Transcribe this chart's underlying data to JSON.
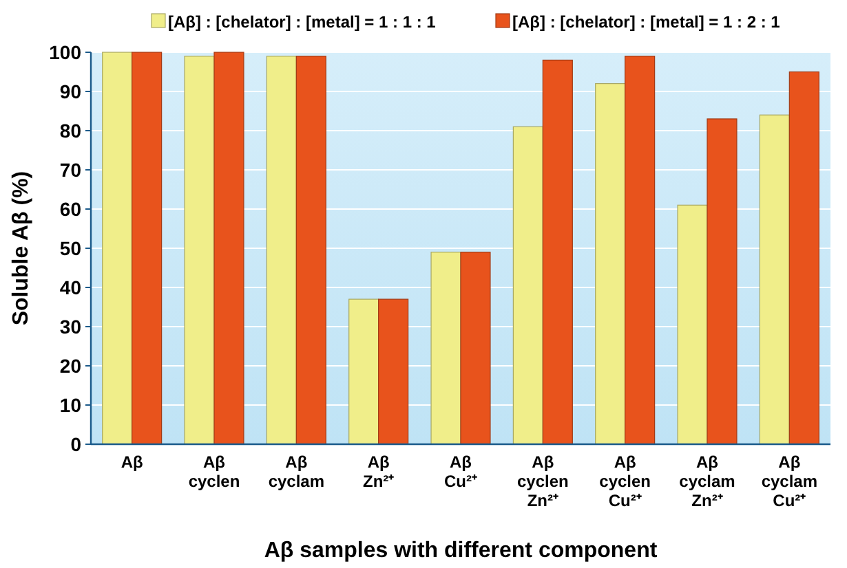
{
  "chart_data": {
    "type": "bar",
    "xlabel": "Aβ samples with different component",
    "ylabel": "Soluble Aβ (%)",
    "categories": [
      "Aβ",
      "Aβ\ncyclen",
      "Aβ\ncyclam",
      "Aβ\nZn²⁺",
      "Aβ\nCu²⁺",
      "Aβ\ncyclen\nZn²⁺",
      "Aβ\ncyclen\nCu²⁺",
      "Aβ\ncyclam\nZn²⁺",
      "Aβ\ncyclam\nCu²⁺"
    ],
    "series": [
      {
        "name": "[Aβ] : [chelator] : [metal] = 1 : 1 : 1",
        "color": "#f0ee8a",
        "values": [
          100,
          99,
          99,
          37,
          49,
          81,
          92,
          61,
          84
        ]
      },
      {
        "name": "[Aβ] : [chelator] : [metal] = 1 : 2 : 1",
        "color": "#e8531c",
        "values": [
          100,
          100,
          99,
          37,
          49,
          98,
          99,
          83,
          95
        ]
      }
    ],
    "ylim": [
      0,
      100
    ],
    "yticks": [
      0,
      10,
      20,
      30,
      40,
      50,
      60,
      70,
      80,
      90,
      100
    ],
    "grid": "y",
    "legend": "top"
  }
}
